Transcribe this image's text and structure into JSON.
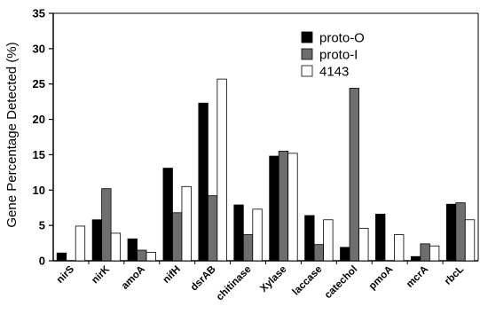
{
  "chart_data": {
    "type": "bar",
    "title": "",
    "xlabel": "",
    "ylabel": "Gene Percentage Detected (%)",
    "ylim": [
      0,
      35
    ],
    "yticks": [
      0,
      5,
      10,
      15,
      20,
      25,
      30,
      35
    ],
    "grid": false,
    "legend_position": "top-right",
    "categories": [
      "nirS",
      "nirK",
      "amoA",
      "nifH",
      "dsrAB",
      "chitinase",
      "Xylase",
      "laccase",
      "catechol",
      "pmoA",
      "mcrA",
      "rbcL"
    ],
    "series": [
      {
        "name": "proto-O",
        "color": "#000000",
        "values": [
          1.1,
          5.8,
          3.1,
          13.1,
          22.3,
          7.9,
          14.8,
          6.4,
          1.9,
          6.6,
          0.6,
          8.0
        ]
      },
      {
        "name": "proto-I",
        "color": "#6e6e6e",
        "values": [
          0.0,
          10.2,
          1.5,
          6.8,
          9.2,
          3.7,
          15.5,
          2.3,
          24.4,
          0.0,
          2.4,
          8.2
        ]
      },
      {
        "name": "4143",
        "color": "#ffffff",
        "values": [
          4.9,
          3.9,
          1.2,
          10.5,
          25.7,
          7.3,
          15.2,
          5.8,
          4.6,
          3.7,
          2.1,
          5.8
        ]
      }
    ]
  }
}
